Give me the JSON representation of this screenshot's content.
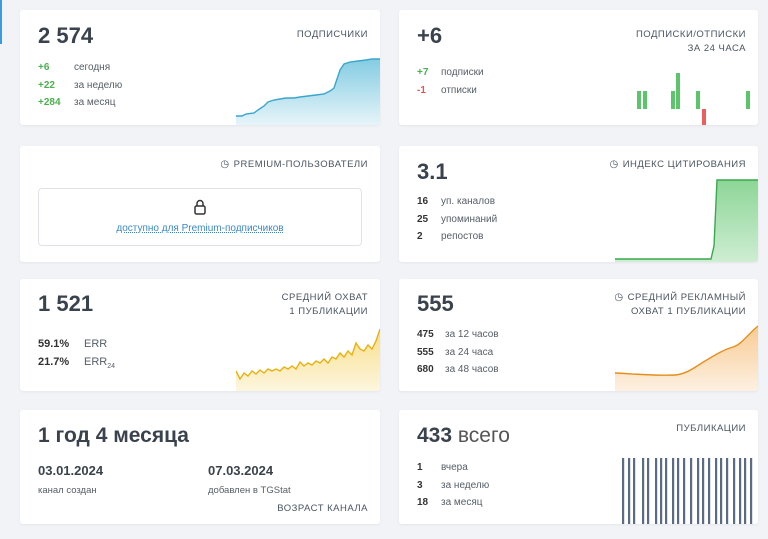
{
  "subscribers": {
    "value": "2 574",
    "title": "ПОДПИСЧИКИ",
    "rows": [
      {
        "num": "+6",
        "label": "сегодня"
      },
      {
        "num": "+22",
        "label": "за неделю"
      },
      {
        "num": "+284",
        "label": "за месяц"
      }
    ]
  },
  "subs_unsubs": {
    "value": "+6",
    "title_line1": "ПОДПИСКИ/ОТПИСКИ",
    "title_line2": "ЗА 24 ЧАСА",
    "rows": [
      {
        "num": "+7",
        "label": "подписки"
      },
      {
        "num": "-1",
        "label": "отписки"
      }
    ]
  },
  "premium": {
    "title": "PREMIUM-ПОЛЬЗОВАТЕЛИ",
    "link": "доступно для Premium-подписчиков"
  },
  "citation": {
    "value": "3.1",
    "title": "ИНДЕКС ЦИТИРОВАНИЯ",
    "rows": [
      {
        "num": "16",
        "label": "уп. каналов"
      },
      {
        "num": "25",
        "label": "упоминаний"
      },
      {
        "num": "2",
        "label": "репостов"
      }
    ]
  },
  "reach": {
    "value": "1 521",
    "title_line1": "СРЕДНИЙ ОХВАТ",
    "title_line2": "1 ПУБЛИКАЦИИ",
    "err": {
      "num": "59.1%",
      "label": "ERR"
    },
    "err24": {
      "num": "21.7%",
      "label": "ERR",
      "sub": "24"
    }
  },
  "ad_reach": {
    "value": "555",
    "title_line1": "СРЕДНИЙ РЕКЛАМНЫЙ",
    "title_line2": "ОХВАТ 1 ПУБЛИКАЦИИ",
    "rows": [
      {
        "num": "475",
        "label": "за 12 часов"
      },
      {
        "num": "555",
        "label": "за 24 часа"
      },
      {
        "num": "680",
        "label": "за 48 часов"
      }
    ]
  },
  "age": {
    "value": "1 год 4 месяца",
    "title": "ВОЗРАСТ КАНАЛА",
    "created_date": "03.01.2024",
    "created_label": "канал создан",
    "added_date": "07.03.2024",
    "added_label": "добавлен в TGStat"
  },
  "publications": {
    "value": "433",
    "total_label": "всего",
    "title": "ПУБЛИКАЦИИ",
    "rows": [
      {
        "num": "1",
        "label": "вчера"
      },
      {
        "num": "3",
        "label": "за неделю"
      },
      {
        "num": "18",
        "label": "за месяц"
      }
    ]
  },
  "colors": {
    "blue": "#5bbbd9",
    "green": "#5cc46a",
    "red": "#e8615e",
    "yellow": "#f2c329",
    "orange": "#f2a03a",
    "slate": "#5a6b85"
  },
  "icons": [
    "clock-icon",
    "lock-icon"
  ]
}
